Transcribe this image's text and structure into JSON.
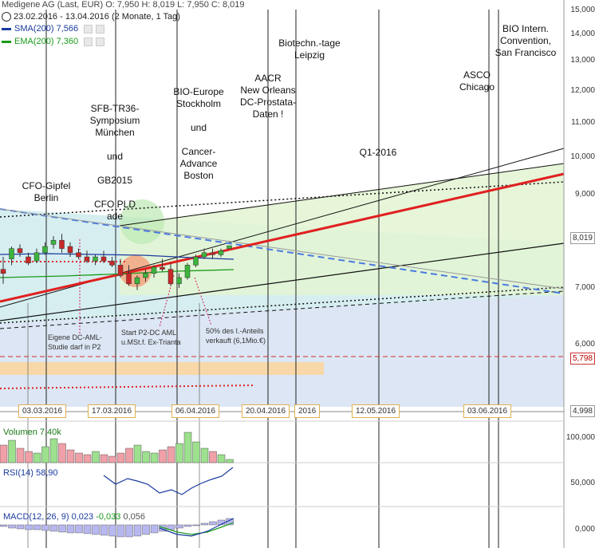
{
  "header": {
    "line1": "Medigene AG (Last, EUR)  O: 7,950  H: 8,019  L: 7,950  C: 8,019",
    "line2": "23.02.2016 - 13.04.2016 (2 Monate, 1 Tag)"
  },
  "legend": {
    "sma": {
      "label": "SMA(200)",
      "value": "7,566",
      "color": "#1a3aa0"
    },
    "ema": {
      "label": "EMA(200)",
      "value": "7,360",
      "color": "#1a9a1a"
    }
  },
  "icons": [
    "clock-icon",
    "settings-icon",
    "close-icon"
  ],
  "annotations": [
    {
      "id": "cfo",
      "text": "CFO-Gipfel\nBerlin"
    },
    {
      "id": "sfb",
      "text": "SFB-TR36-\nSymposium\nMünchen\n\nund\n\nGB2015\n\nCFO PLD\nade"
    },
    {
      "id": "bioeurope",
      "text": "BIO-Europe\nStockholm\n\nund\n\nCancer-\nAdvance\nBoston"
    },
    {
      "id": "aacr",
      "text": "AACR\nNew Orleans\nDC-Prostata-\nDaten !"
    },
    {
      "id": "biotech",
      "text": "Biotechn.-tage\nLeipzig"
    },
    {
      "id": "q1",
      "text": "Q1-2016"
    },
    {
      "id": "asco",
      "text": "ASCO\nChicago"
    },
    {
      "id": "biointern",
      "text": "BIO Intern.\nConvention,\nSan Francisco"
    },
    {
      "id": "dcaml",
      "text": "Eigene DC-AML-\nStudie darf in P2"
    },
    {
      "id": "p2",
      "text": "Start P2-DC AML\nu.MSt.f. Ex-Trianta"
    },
    {
      "id": "sold",
      "text": "50% des I.-Anteils\nverkauft (6,1Mio.€)"
    }
  ],
  "x_axis_dates": [
    "03.03.2016",
    "17.03.2016",
    "06.04.2016",
    "20.04.2016",
    "2016",
    "12.05.2016",
    "03.06.2016"
  ],
  "y_axis": [
    "15,000",
    "14,000",
    "13,000",
    "12,000",
    "11,000",
    "10,000",
    "9,000",
    "8,019",
    "7,000",
    "6,000",
    "5,798",
    "4,998"
  ],
  "volume_panel": {
    "label": "Volumen",
    "value": "7,40k",
    "axis": "100,000"
  },
  "rsi_panel": {
    "label": "RSI(14)",
    "value": "58,90",
    "axis": "50,000"
  },
  "macd_panel": {
    "label": "MACD(12, 26, 9)",
    "v1": "0,023",
    "v2": "-0,033",
    "v3": "0,056",
    "axis": "0,000"
  },
  "chart_data": {
    "type": "candlestick",
    "ylim": [
      4.9,
      15.2
    ],
    "candles": [
      {
        "o": 7.45,
        "h": 7.75,
        "l": 7.1,
        "c": 7.35
      },
      {
        "o": 7.7,
        "h": 8.0,
        "l": 7.55,
        "c": 7.95
      },
      {
        "o": 7.95,
        "h": 8.05,
        "l": 7.75,
        "c": 7.85
      },
      {
        "o": 7.75,
        "h": 7.85,
        "l": 7.55,
        "c": 7.6
      },
      {
        "o": 7.65,
        "h": 7.95,
        "l": 7.6,
        "c": 7.85
      },
      {
        "o": 7.85,
        "h": 8.1,
        "l": 7.8,
        "c": 8.0
      },
      {
        "o": 8.05,
        "h": 8.25,
        "l": 7.95,
        "c": 8.15
      },
      {
        "o": 8.15,
        "h": 8.3,
        "l": 7.85,
        "c": 7.95
      },
      {
        "o": 8.0,
        "h": 8.1,
        "l": 7.75,
        "c": 7.85
      },
      {
        "o": 7.85,
        "h": 7.95,
        "l": 7.7,
        "c": 7.75
      },
      {
        "o": 7.75,
        "h": 7.9,
        "l": 7.6,
        "c": 7.65
      },
      {
        "o": 7.65,
        "h": 7.8,
        "l": 7.55,
        "c": 7.75
      },
      {
        "o": 7.75,
        "h": 7.9,
        "l": 7.6,
        "c": 7.65
      },
      {
        "o": 7.65,
        "h": 7.75,
        "l": 7.5,
        "c": 7.55
      },
      {
        "o": 7.55,
        "h": 7.7,
        "l": 7.25,
        "c": 7.3
      },
      {
        "o": 7.35,
        "h": 7.55,
        "l": 7.05,
        "c": 7.1
      },
      {
        "o": 7.1,
        "h": 7.3,
        "l": 6.95,
        "c": 7.25
      },
      {
        "o": 7.25,
        "h": 7.45,
        "l": 7.15,
        "c": 7.35
      },
      {
        "o": 7.35,
        "h": 7.55,
        "l": 7.25,
        "c": 7.5
      },
      {
        "o": 7.5,
        "h": 7.7,
        "l": 7.4,
        "c": 7.45
      },
      {
        "o": 7.45,
        "h": 7.6,
        "l": 7.05,
        "c": 7.1
      },
      {
        "o": 7.1,
        "h": 7.35,
        "l": 7.0,
        "c": 7.25
      },
      {
        "o": 7.25,
        "h": 7.6,
        "l": 7.2,
        "c": 7.55
      },
      {
        "o": 7.55,
        "h": 7.8,
        "l": 7.5,
        "c": 7.75
      },
      {
        "o": 7.75,
        "h": 7.95,
        "l": 7.7,
        "c": 7.85
      },
      {
        "o": 7.85,
        "h": 7.95,
        "l": 7.7,
        "c": 7.8
      },
      {
        "o": 7.8,
        "h": 7.95,
        "l": 7.75,
        "c": 7.9
      },
      {
        "o": 7.95,
        "h": 8.02,
        "l": 7.95,
        "c": 8.019
      }
    ]
  }
}
